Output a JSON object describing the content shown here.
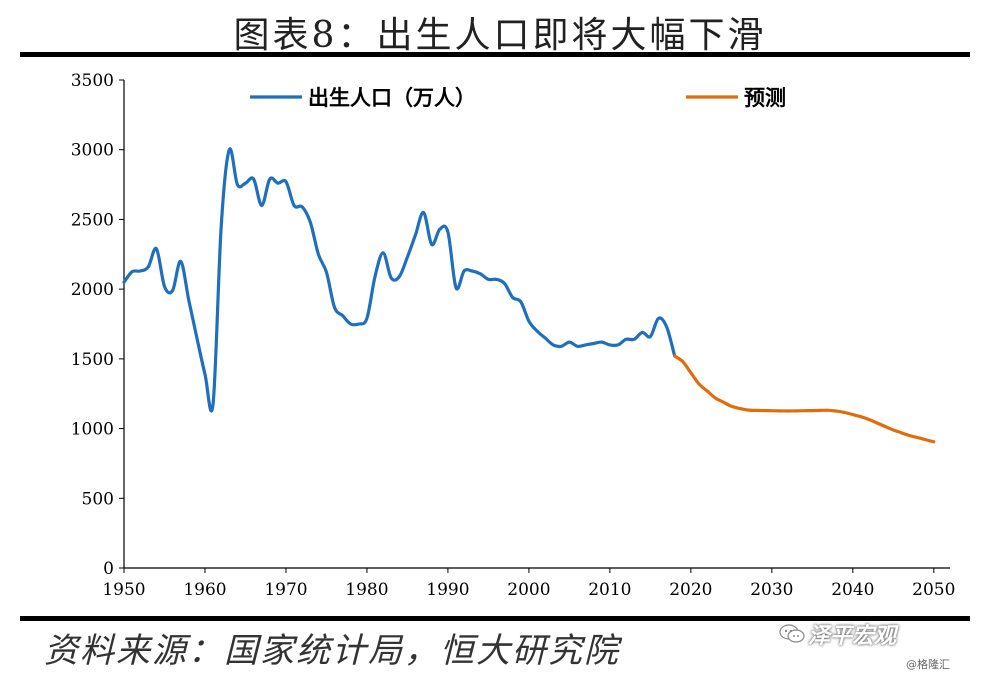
{
  "title": "图表8：出生人口即将大幅下滑",
  "source": "资料来源：国家统计局，恒大研究院",
  "watermark": {
    "main": "泽平宏观",
    "sub": "@格隆汇",
    "icon": "wechat-icon"
  },
  "colors": {
    "history": "#1f6fbf",
    "forecast": "#e36c0a",
    "axis": "#000000"
  },
  "chart_data": {
    "type": "line",
    "title": "图表8：出生人口即将大幅下滑",
    "xlabel": "",
    "ylabel": "",
    "xlim": [
      1950,
      2052
    ],
    "ylim": [
      0,
      3500
    ],
    "xticks": [
      1950,
      1960,
      1970,
      1980,
      1990,
      2000,
      2010,
      2020,
      2030,
      2040,
      2050
    ],
    "yticks": [
      0,
      500,
      1000,
      1500,
      2000,
      2500,
      3000,
      3500
    ],
    "grid": false,
    "legend_position": "top",
    "series": [
      {
        "name": "出生人口（万人）",
        "color": "#1f6fbf",
        "x": [
          1950,
          1951,
          1952,
          1953,
          1954,
          1955,
          1956,
          1957,
          1958,
          1959,
          1960,
          1961,
          1962,
          1963,
          1964,
          1965,
          1966,
          1967,
          1968,
          1969,
          1970,
          1971,
          1972,
          1973,
          1974,
          1975,
          1976,
          1977,
          1978,
          1979,
          1980,
          1981,
          1982,
          1983,
          1984,
          1985,
          1986,
          1987,
          1988,
          1989,
          1990,
          1991,
          1992,
          1993,
          1994,
          1995,
          1996,
          1997,
          1998,
          1999,
          2000,
          2001,
          2002,
          2003,
          2004,
          2005,
          2006,
          2007,
          2008,
          2009,
          2010,
          2011,
          2012,
          2013,
          2014,
          2015,
          2016,
          2017,
          2018
        ],
        "values": [
          2050,
          2125,
          2130,
          2160,
          2290,
          2020,
          1990,
          2200,
          1920,
          1650,
          1390,
          1180,
          2450,
          3000,
          2750,
          2760,
          2790,
          2600,
          2790,
          2760,
          2770,
          2600,
          2590,
          2480,
          2250,
          2120,
          1870,
          1810,
          1750,
          1750,
          1790,
          2090,
          2260,
          2080,
          2090,
          2230,
          2390,
          2550,
          2320,
          2430,
          2410,
          2010,
          2130,
          2130,
          2110,
          2070,
          2070,
          2040,
          1940,
          1910,
          1770,
          1700,
          1650,
          1600,
          1590,
          1620,
          1590,
          1600,
          1610,
          1620,
          1600,
          1600,
          1640,
          1640,
          1690,
          1660,
          1790,
          1730,
          1520
        ]
      },
      {
        "name": "预测",
        "color": "#e36c0a",
        "x": [
          2018,
          2019,
          2020,
          2021,
          2022,
          2023,
          2024,
          2025,
          2026,
          2027,
          2028,
          2029,
          2030,
          2031,
          2032,
          2033,
          2034,
          2035,
          2036,
          2037,
          2038,
          2039,
          2040,
          2041,
          2042,
          2043,
          2044,
          2045,
          2046,
          2047,
          2048,
          2049,
          2050
        ],
        "values": [
          1520,
          1480,
          1400,
          1320,
          1270,
          1220,
          1190,
          1160,
          1145,
          1133,
          1130,
          1129,
          1128,
          1127,
          1126,
          1127,
          1128,
          1129,
          1130,
          1131,
          1125,
          1115,
          1100,
          1085,
          1065,
          1040,
          1015,
          990,
          970,
          950,
          935,
          920,
          905
        ]
      }
    ]
  }
}
